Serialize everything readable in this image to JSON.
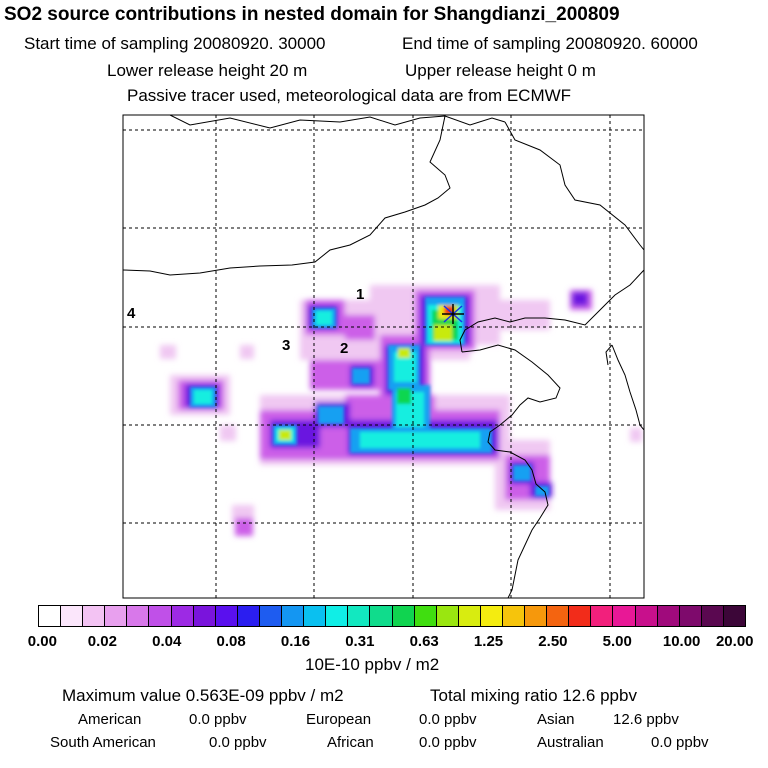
{
  "header": {
    "title": "SO2 source contributions in nested domain for Shangdianzi_200809",
    "start_time": "Start time of sampling 20080920. 30000",
    "end_time": "End time of sampling 20080920. 60000",
    "lower_height": "Lower release height   20 m",
    "upper_height": "Upper release height    0 m",
    "tracer_note": "Passive tracer used, meteorological data are from ECMWF"
  },
  "map": {
    "region_labels": [
      "1",
      "2",
      "3",
      "4"
    ],
    "station_marker": "Shangdianzi"
  },
  "colorbar": {
    "colors": [
      "#ffffff",
      "#fbe6fb",
      "#f3c3f3",
      "#e8a0ee",
      "#d878ea",
      "#c050e8",
      "#9d2ae4",
      "#7a14dc",
      "#5a10ee",
      "#2b1ef0",
      "#1e5cf0",
      "#1496f2",
      "#0ac0f0",
      "#10eee6",
      "#12e8c0",
      "#10dc8c",
      "#10d450",
      "#40de10",
      "#9ae610",
      "#d8ec10",
      "#f4ec10",
      "#f6c40c",
      "#f6980c",
      "#f46410",
      "#f22c1a",
      "#f2207c",
      "#e81896",
      "#c8108c",
      "#a00a7c",
      "#7e0a6c",
      "#5a0850",
      "#3c0638"
    ],
    "ticks": [
      "0.00",
      "0.02",
      "0.04",
      "0.08",
      "0.16",
      "0.31",
      "0.63",
      "1.25",
      "2.50",
      "5.00",
      "10.00",
      "20.00"
    ],
    "unit": "10E-10 ppbv / m2"
  },
  "footer": {
    "max_value": "Maximum value  0.563E-09 ppbv / m2",
    "total_mixing": "Total mixing ratio      12.6 ppbv",
    "american": "American",
    "american_val": "0.0 ppbv",
    "european": "European",
    "european_val": "0.0 ppbv",
    "asian": "Asian",
    "asian_val": "12.6 ppbv",
    "south_american": "South American",
    "south_american_val": "0.0 ppbv",
    "african": "African",
    "african_val": "0.0 ppbv",
    "australian": "Australian",
    "australian_val": "0.0 ppbv"
  }
}
